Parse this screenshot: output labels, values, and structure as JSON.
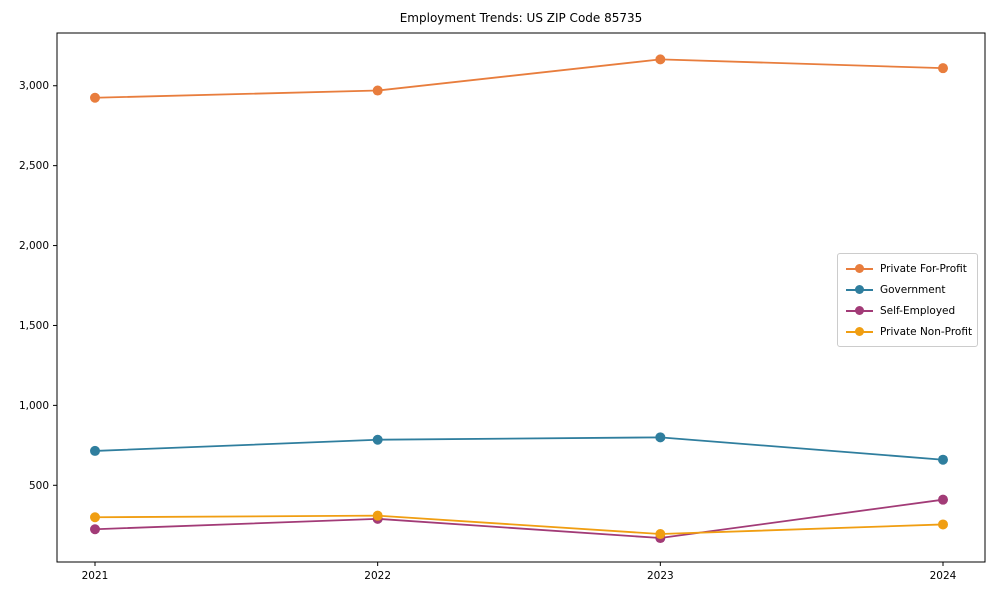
{
  "chart_data": {
    "type": "line",
    "title": "Employment Trends: US ZIP Code 85735",
    "xlabel": "",
    "ylabel": "",
    "x_tick_labels": [
      "2021",
      "2022",
      "2023",
      "2024"
    ],
    "y_tick_values": [
      500,
      1000,
      1500,
      2000,
      2500,
      3000
    ],
    "y_tick_labels": [
      "500",
      "1,000",
      "1,500",
      "2,000",
      "2,500",
      "3,000"
    ],
    "ylim": [
      20,
      3330
    ],
    "grid": false,
    "legend_position": "center-right",
    "marker": "circle",
    "series": [
      {
        "name": "Private For-Profit",
        "color": "#E87D3D",
        "values": [
          2925,
          2970,
          3165,
          3110
        ]
      },
      {
        "name": "Government",
        "color": "#2F7E9E",
        "values": [
          715,
          785,
          800,
          660
        ]
      },
      {
        "name": "Self-Employed",
        "color": "#A23B77",
        "values": [
          225,
          290,
          170,
          410
        ]
      },
      {
        "name": "Private Non-Profit",
        "color": "#F09E12",
        "values": [
          300,
          310,
          195,
          255
        ]
      }
    ]
  }
}
